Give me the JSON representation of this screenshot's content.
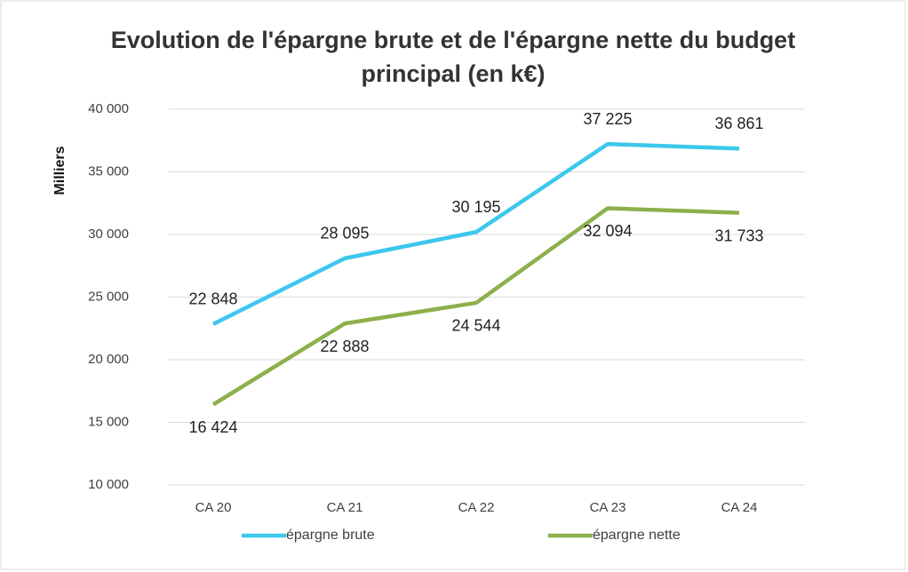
{
  "chart_data": {
    "type": "line",
    "title": "Evolution de l'épargne brute et de l'épargne nette du budget principal (en k€)",
    "ylabel": "Milliers",
    "categories": [
      "CA 20",
      "CA 21",
      "CA 22",
      "CA 23",
      "CA 24"
    ],
    "series": [
      {
        "name": "épargne brute",
        "color": "#3cc8ec",
        "values": [
          22848,
          28095,
          30195,
          37225,
          36861
        ],
        "value_labels": [
          "22 848",
          "28 095",
          "30 195",
          "37 225",
          "36 861"
        ]
      },
      {
        "name": "épargne nette",
        "color": "#8db04c",
        "values": [
          16424,
          22888,
          24544,
          32094,
          31733
        ],
        "value_labels": [
          "16 424",
          "22 888",
          "24 544",
          "32 094",
          "31 733"
        ]
      }
    ],
    "ylim": [
      10000,
      40000
    ],
    "yticks": [
      {
        "value": 10000,
        "label": "10 000"
      },
      {
        "value": 15000,
        "label": "15 000"
      },
      {
        "value": 20000,
        "label": "20 000"
      },
      {
        "value": 25000,
        "label": "25 000"
      },
      {
        "value": 30000,
        "label": "30 000"
      },
      {
        "value": 35000,
        "label": "35 000"
      },
      {
        "value": 40000,
        "label": "40 000"
      }
    ],
    "grid": true,
    "legend": "bottom"
  }
}
